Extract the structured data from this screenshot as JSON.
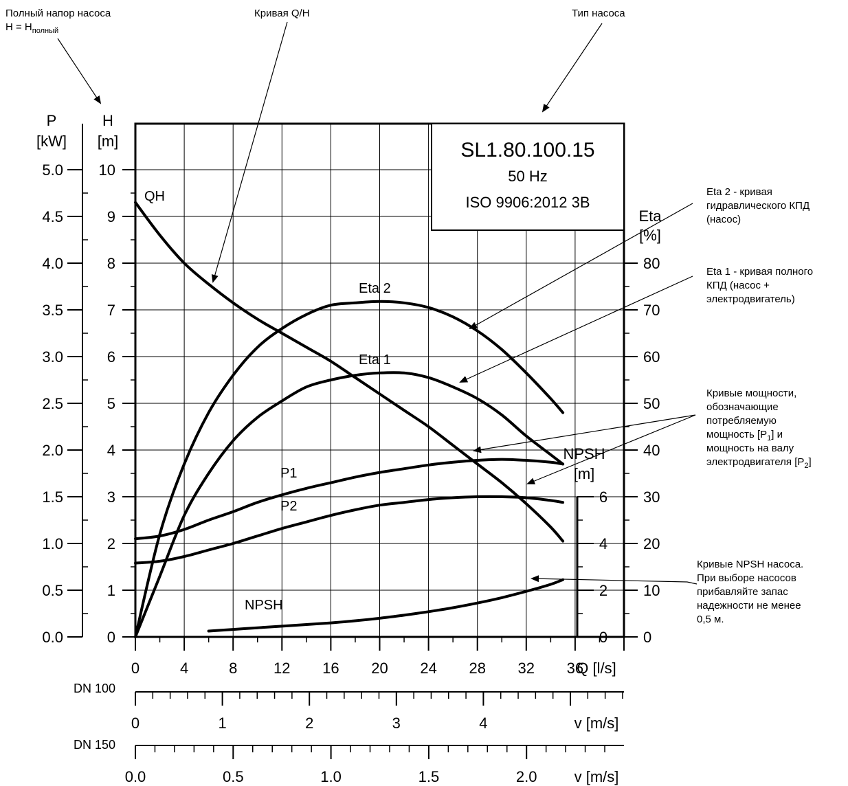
{
  "annotations": {
    "total_head_line1": "Полный напор насоса",
    "total_head_line2_base": "H = H",
    "total_head_line2_sub": "полный",
    "qh_curve": "Кривая Q/H",
    "pump_type": "Тип насоса",
    "eta2_lines": [
      "Eta 2 - кривая",
      "гидравлического КПД",
      "(насос)"
    ],
    "eta1_lines": [
      "Eta 1 - кривая полного",
      "КПД (насос +",
      "электродвигатель)"
    ],
    "power_lines": [
      "Кривые мощности,",
      "обозначающие",
      "потребляемую"
    ],
    "power_line4_a": "мощность [P",
    "power_line4_sub": "1",
    "power_line4_b": "] и",
    "power_line5": "мощность на валу",
    "power_line6_a": "электродвигателя [P",
    "power_line6_sub": "2",
    "power_line6_b": "]",
    "npsh_lines": [
      "Кривые NPSH насоса.",
      "При выборе насосов",
      "прибавляйте запас",
      "надежности не менее",
      "0,5 м."
    ]
  },
  "pump_box": {
    "model": "SL1.80.100.15",
    "frequency": "50 Hz",
    "standard": "ISO 9906:2012 3B"
  },
  "axes": {
    "p_title": "P",
    "p_unit": "[kW]",
    "h_title": "H",
    "h_unit": "[m]",
    "eta_title": "Eta",
    "eta_unit": "[%]",
    "npsh_title": "NPSH",
    "npsh_unit": "[m]",
    "q_label": "Q [l/s]",
    "dn100_label": "DN 100",
    "dn150_label": "DN 150",
    "v_label_100": "v [m/s]",
    "v_label_150": "v [m/s]",
    "p_ticks": [
      "0.0",
      "0.5",
      "1.0",
      "1.5",
      "2.0",
      "2.5",
      "3.0",
      "3.5",
      "4.0",
      "4.5",
      "5.0"
    ],
    "h_ticks": [
      "0",
      "1",
      "2",
      "3",
      "4",
      "5",
      "6",
      "7",
      "8",
      "9",
      "10"
    ],
    "eta_ticks": [
      "0",
      "10",
      "20",
      "30",
      "40",
      "50",
      "60",
      "70",
      "80"
    ],
    "npsh_ticks": [
      "0",
      "2",
      "4",
      "6"
    ],
    "q_ticks": [
      "0",
      "4",
      "8",
      "12",
      "16",
      "20",
      "24",
      "28",
      "32",
      "36"
    ],
    "v100_ticks": [
      "0",
      "1",
      "2",
      "3",
      "4"
    ],
    "v150_ticks": [
      "0.0",
      "0.5",
      "1.0",
      "1.5",
      "2.0"
    ]
  },
  "curve_labels": {
    "qh": "QH",
    "eta2": "Eta 2",
    "eta1": "Eta 1",
    "p1": "P1",
    "p2": "P2",
    "npsh": "NPSH"
  },
  "chart_data": {
    "type": "line",
    "x_axis": "Q",
    "xlim": [
      0,
      40
    ],
    "series": [
      {
        "name": "QH",
        "axis": "H",
        "x": [
          0,
          2,
          4,
          6,
          8,
          10,
          12,
          14,
          16,
          18,
          20,
          22,
          24,
          26,
          28,
          30,
          32,
          34,
          35
        ],
        "y": [
          9.3,
          8.6,
          8.0,
          7.55,
          7.15,
          6.8,
          6.5,
          6.2,
          5.9,
          5.55,
          5.2,
          4.85,
          4.5,
          4.1,
          3.7,
          3.3,
          2.85,
          2.35,
          2.05
        ]
      },
      {
        "name": "Eta 2",
        "axis": "Eta",
        "x": [
          0,
          2,
          4,
          6,
          8,
          10,
          12,
          14,
          16,
          18,
          20,
          22,
          24,
          26,
          28,
          30,
          32,
          34,
          35
        ],
        "y": [
          0,
          22,
          37,
          48,
          56,
          62,
          66,
          69,
          71,
          71.5,
          71.8,
          71.5,
          70.5,
          68.5,
          65.5,
          61.5,
          56.5,
          51,
          48
        ]
      },
      {
        "name": "Eta 1",
        "axis": "Eta",
        "x": [
          0,
          2,
          4,
          6,
          8,
          10,
          12,
          14,
          16,
          18,
          20,
          22,
          24,
          26,
          28,
          30,
          32,
          34,
          35
        ],
        "y": [
          0,
          13,
          26,
          35,
          42,
          47,
          50.5,
          53.5,
          55,
          56,
          56.5,
          56.5,
          55.5,
          53.5,
          51,
          47.5,
          43,
          39,
          37
        ]
      },
      {
        "name": "P1",
        "axis": "P",
        "x": [
          0,
          2,
          4,
          6,
          8,
          10,
          12,
          14,
          16,
          18,
          20,
          22,
          24,
          26,
          28,
          30,
          32,
          34,
          35
        ],
        "y": [
          1.05,
          1.08,
          1.15,
          1.25,
          1.34,
          1.44,
          1.52,
          1.59,
          1.65,
          1.71,
          1.76,
          1.8,
          1.84,
          1.87,
          1.89,
          1.9,
          1.89,
          1.87,
          1.85
        ]
      },
      {
        "name": "P2",
        "axis": "P",
        "x": [
          0,
          2,
          4,
          6,
          8,
          10,
          12,
          14,
          16,
          18,
          20,
          22,
          24,
          26,
          28,
          30,
          32,
          34,
          35
        ],
        "y": [
          0.79,
          0.81,
          0.86,
          0.93,
          1.0,
          1.08,
          1.16,
          1.23,
          1.3,
          1.36,
          1.41,
          1.44,
          1.47,
          1.49,
          1.5,
          1.5,
          1.49,
          1.46,
          1.44
        ]
      },
      {
        "name": "NPSH",
        "axis": "NPSH",
        "x": [
          6,
          8,
          10,
          12,
          14,
          16,
          18,
          20,
          22,
          24,
          26,
          28,
          30,
          32,
          34,
          35
        ],
        "y": [
          0.25,
          0.32,
          0.39,
          0.46,
          0.53,
          0.6,
          0.69,
          0.8,
          0.93,
          1.08,
          1.25,
          1.45,
          1.68,
          1.95,
          2.25,
          2.45
        ]
      }
    ],
    "axes": {
      "P": {
        "label": "P [kW]",
        "range": [
          0,
          5.0
        ]
      },
      "H": {
        "label": "H [m]",
        "range": [
          0,
          10
        ]
      },
      "Eta": {
        "label": "Eta [%]",
        "range": [
          0,
          80
        ]
      },
      "NPSH": {
        "label": "NPSH [m]",
        "range": [
          0,
          6
        ]
      }
    },
    "velocity_scales": {
      "DN 100": {
        "label": "v [m/s]",
        "ticks": [
          0,
          1,
          2,
          3,
          4
        ]
      },
      "DN 150": {
        "label": "v [m/s]",
        "ticks": [
          0.0,
          0.5,
          1.0,
          1.5,
          2.0
        ]
      }
    },
    "grid": true
  }
}
